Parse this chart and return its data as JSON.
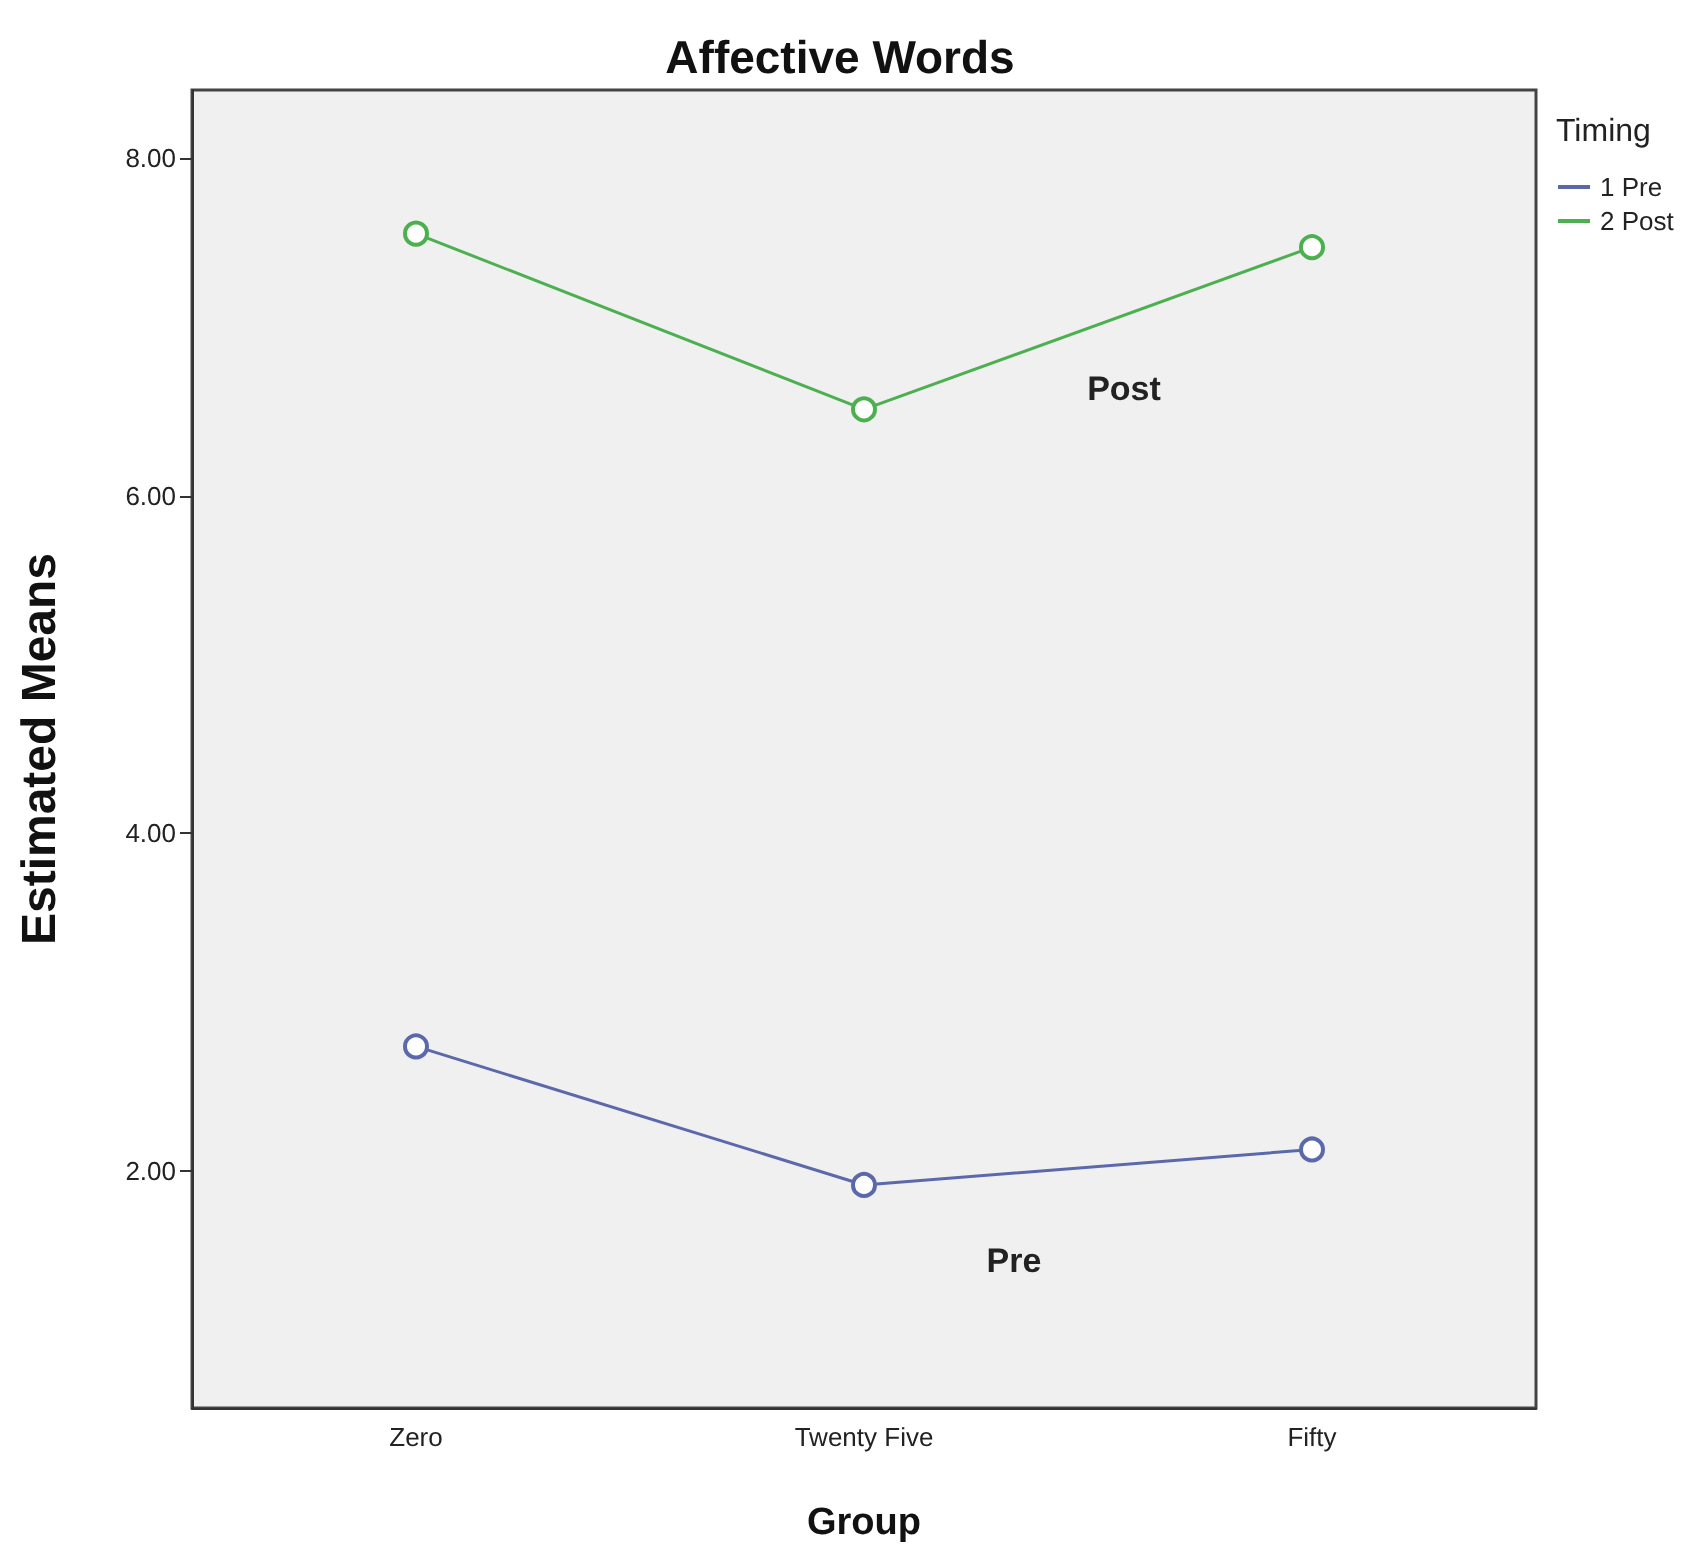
{
  "chart_data": {
    "type": "line",
    "title": "Affective Words",
    "xlabel": "Group",
    "ylabel": "Estimated Means",
    "legend_title": "Timing",
    "categories": [
      "Zero",
      "Twenty Five",
      "Fifty"
    ],
    "series": [
      {
        "name": "1 Pre",
        "color": "#5b69aa",
        "values": [
          2.74,
          1.92,
          2.13
        ]
      },
      {
        "name": "2 Post",
        "color": "#4cb050",
        "values": [
          7.55,
          6.51,
          7.47
        ]
      }
    ],
    "ylim": [
      0.6,
      8.4
    ],
    "yticks": [
      {
        "value": 2,
        "label": "2.00"
      },
      {
        "value": 4,
        "label": "4.00"
      },
      {
        "value": 6,
        "label": "6.00"
      },
      {
        "value": 8,
        "label": "8.00"
      }
    ],
    "annotations": [
      "Pre",
      "Post"
    ],
    "marker": "circle",
    "line_style": "solid",
    "grid": false,
    "legend": "top right"
  }
}
